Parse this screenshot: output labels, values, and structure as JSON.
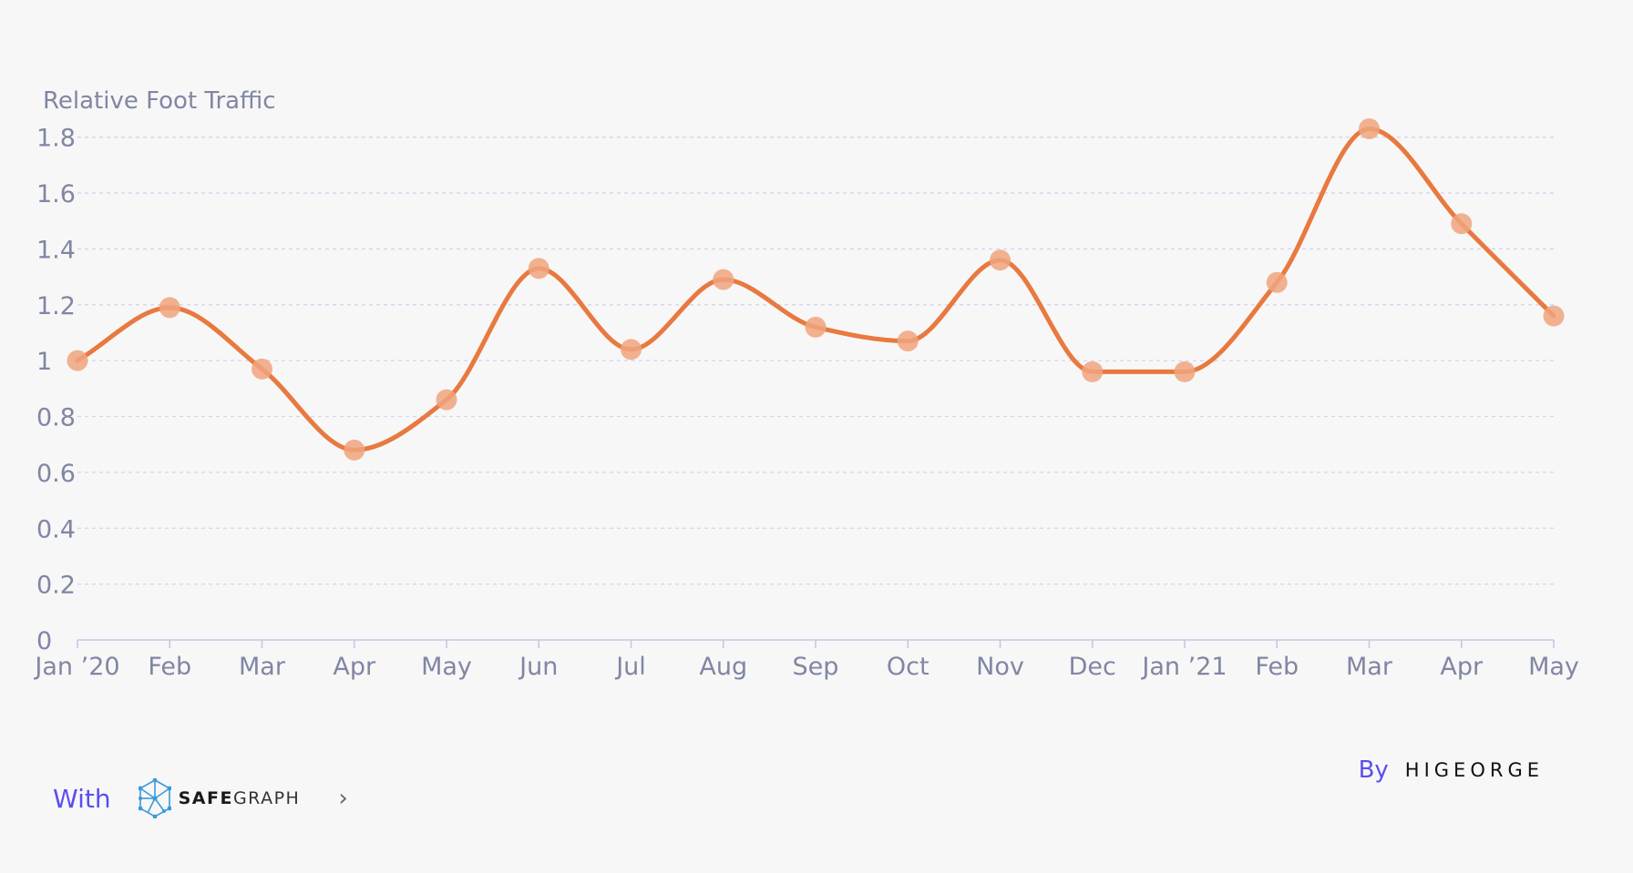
{
  "chart_data": {
    "type": "line",
    "ylabel": "Relative Foot Traffic",
    "categories": [
      "Jan ’20",
      "Feb",
      "Mar",
      "Apr",
      "May",
      "Jun",
      "Jul",
      "Aug",
      "Sep",
      "Oct",
      "Nov",
      "Dec",
      "Jan ’21",
      "Feb",
      "Mar",
      "Apr",
      "May"
    ],
    "series": [
      {
        "values": [
          1.0,
          1.19,
          0.97,
          0.68,
          0.86,
          1.33,
          1.04,
          1.29,
          1.12,
          1.07,
          1.36,
          0.96,
          0.96,
          1.28,
          1.83,
          1.49,
          1.16
        ],
        "color": "#e8793f",
        "marker_color": "#f0a57e"
      }
    ],
    "ylim": [
      0,
      1.9
    ],
    "yticks": [
      "0",
      "0.2",
      "0.4",
      "0.6",
      "0.8",
      "1",
      "1.2",
      "1.4",
      "1.6",
      "1.8"
    ],
    "grid": true,
    "curve": "smooth"
  },
  "footer": {
    "with_label": "With",
    "brand_bold": "SAFE",
    "brand_light": "GRAPH",
    "chevron": "›",
    "by_label": "By",
    "author": "HIGEORGE"
  },
  "colors": {
    "accent": "#5b4df0",
    "axis_text": "#8086a3",
    "grid": "#d6d3f0"
  },
  "icons": {
    "safegraph": "safegraph-logo-icon",
    "chevron": "chevron-right-icon"
  }
}
